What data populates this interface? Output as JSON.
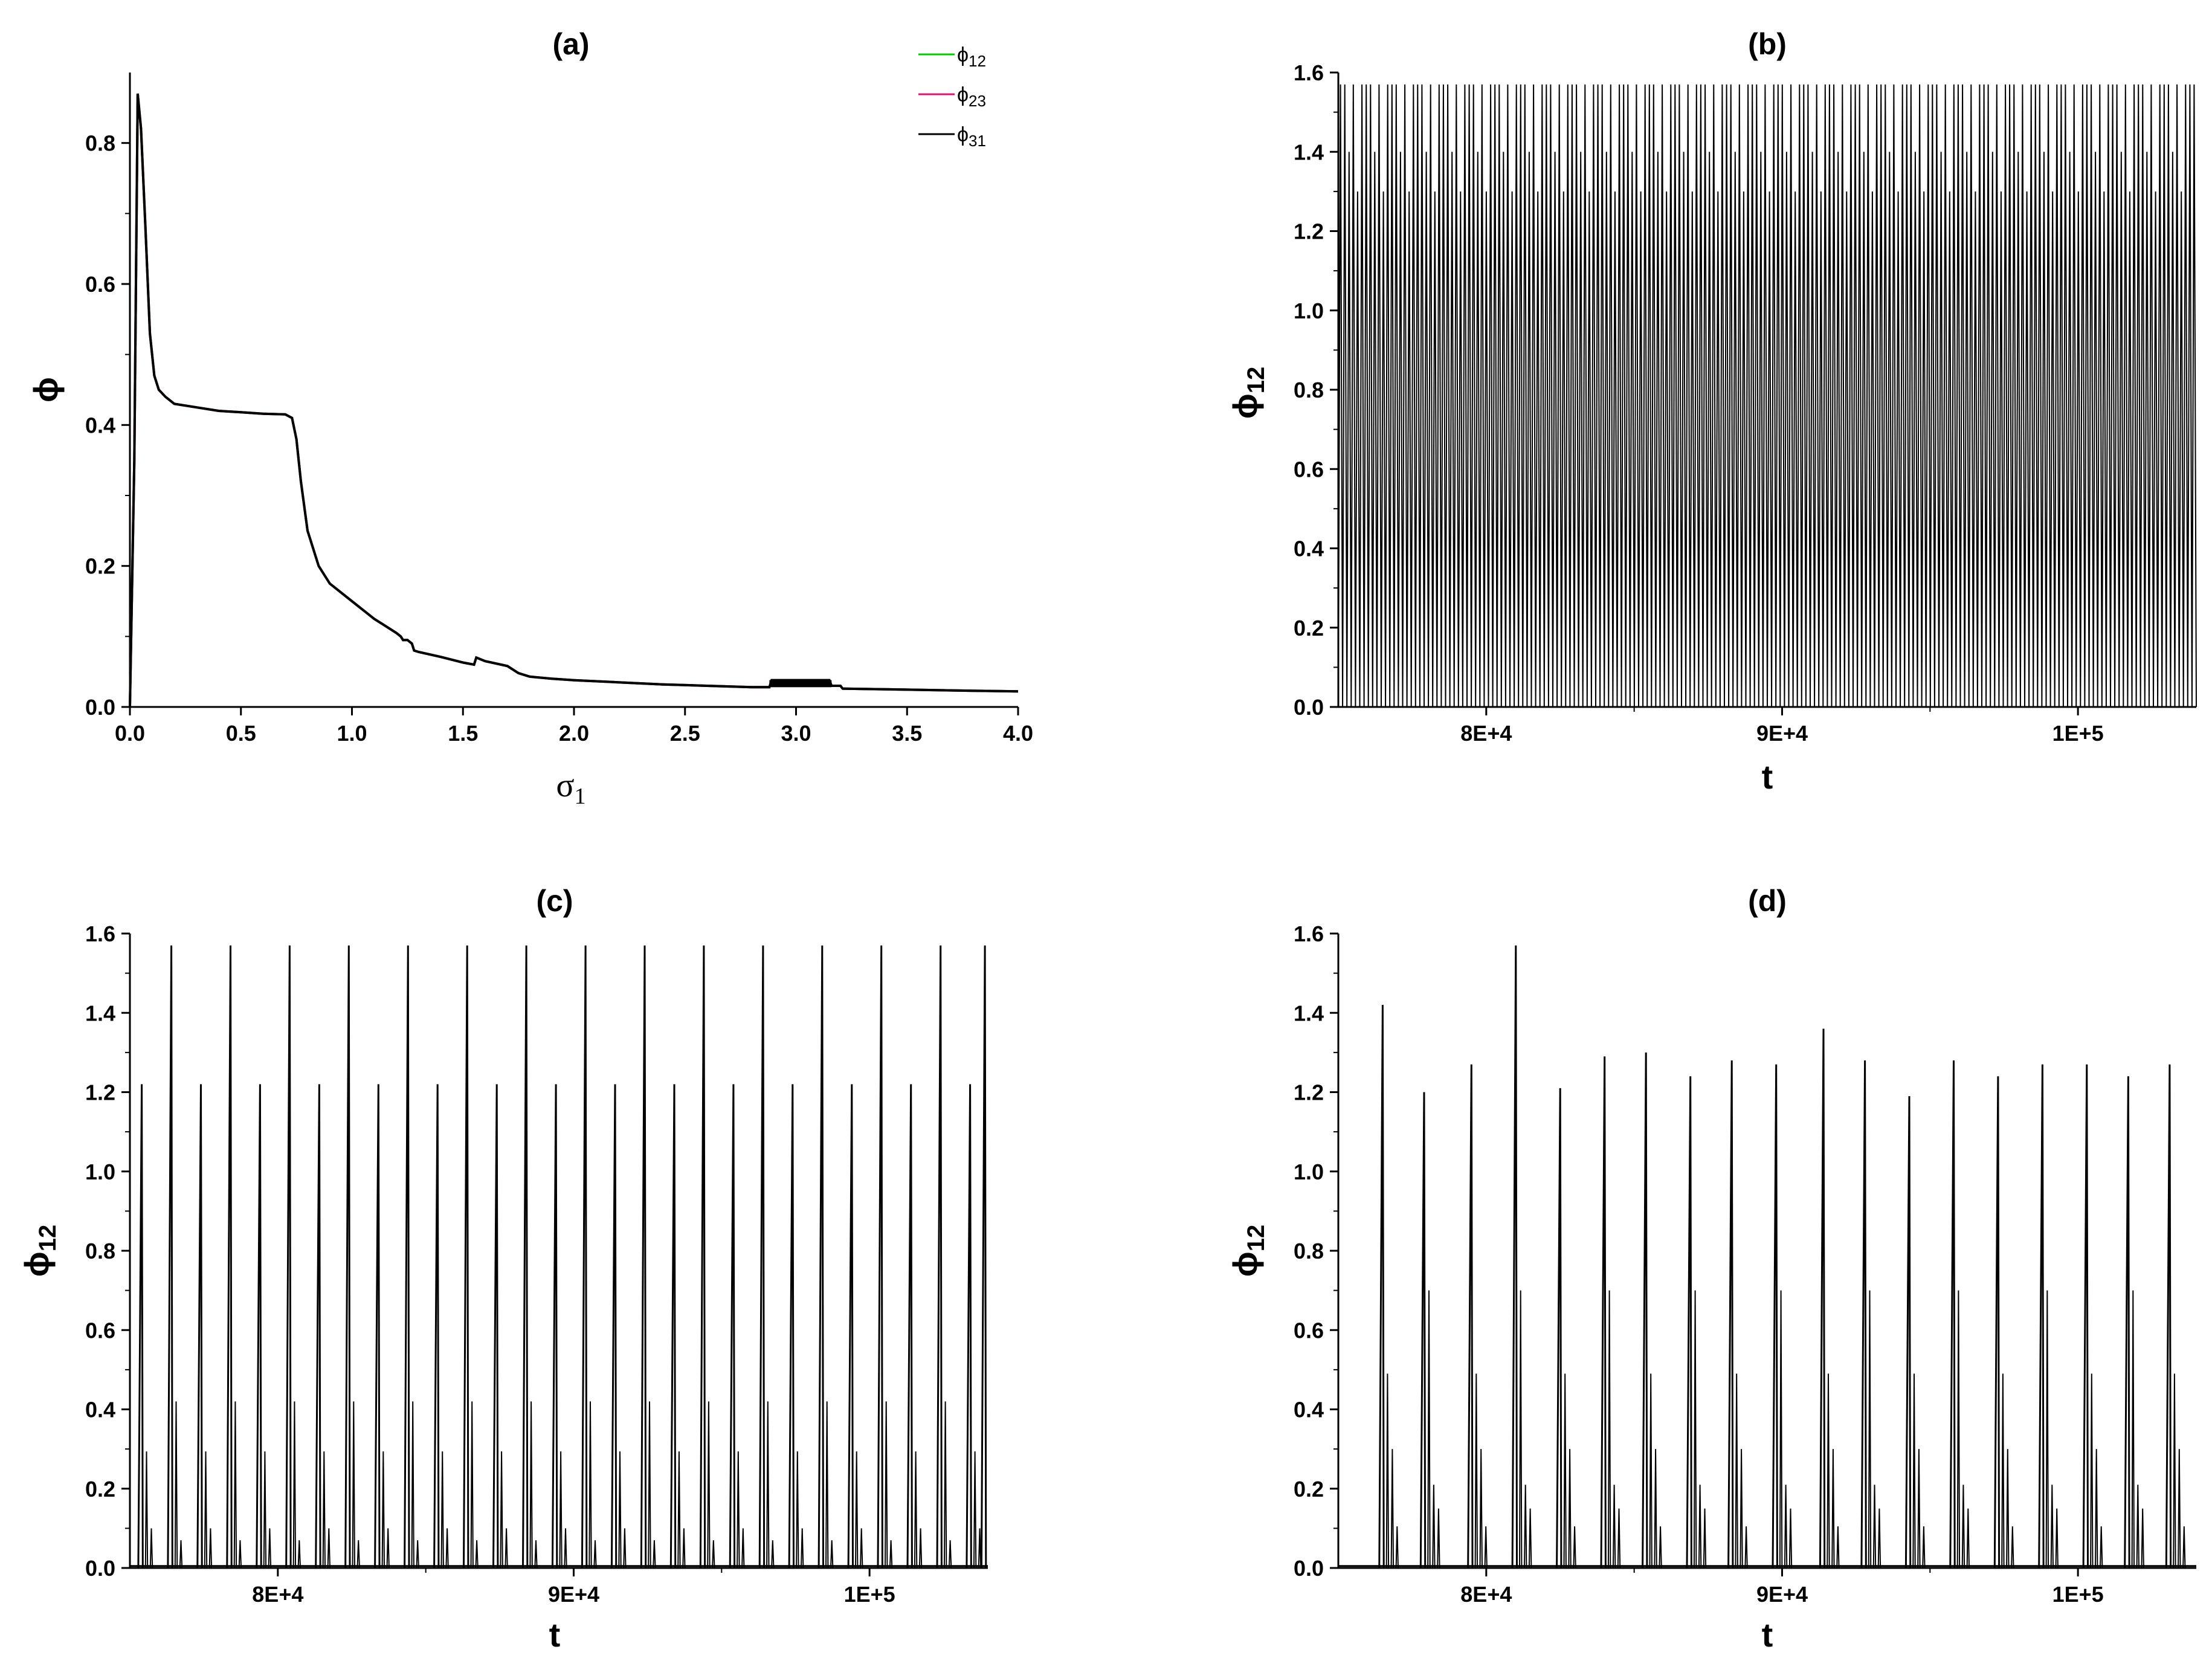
{
  "chart_data": [
    {
      "id": "a",
      "type": "line",
      "title": "(a)",
      "xlabel": "σ",
      "xlabel_sub": "1",
      "ylabel": "ϕ",
      "xlim": [
        0,
        4.0
      ],
      "ylim": [
        0,
        0.9
      ],
      "xticks": [
        0.0,
        0.5,
        1.0,
        1.5,
        2.0,
        2.5,
        3.0,
        3.5,
        4.0
      ],
      "xtick_labels": [
        "0.0",
        "0.5",
        "1.0",
        "1.5",
        "2.0",
        "2.5",
        "3.0",
        "3.5",
        "4.0"
      ],
      "yticks": [
        0.0,
        0.2,
        0.4,
        0.6,
        0.8
      ],
      "ytick_labels": [
        "0.0",
        "0.2",
        "0.4",
        "0.6",
        "0.8"
      ],
      "legend_position": "top-right",
      "legend": [
        {
          "main": "ϕ",
          "sub": "12",
          "color": "#00cc00"
        },
        {
          "main": "ϕ",
          "sub": "23",
          "color": "#e0107a"
        },
        {
          "main": "ϕ",
          "sub": "31",
          "color": "#000000"
        }
      ],
      "series": [
        {
          "name": "ϕ12",
          "color": "#00cc00",
          "x": [
            0,
            0.02,
            0.035,
            0.05,
            0.07,
            0.09,
            0.11,
            0.13,
            0.16,
            0.2,
            0.3,
            0.4,
            0.5,
            0.6,
            0.7,
            0.73,
            0.75,
            0.77,
            0.8,
            0.85,
            0.9,
            1.0,
            1.1,
            1.2,
            1.22,
            1.23,
            1.25,
            1.27,
            1.28,
            1.3,
            1.4,
            1.5,
            1.55,
            1.56,
            1.6,
            1.7,
            1.75,
            1.8,
            1.9,
            2.0,
            2.2,
            2.4,
            2.6,
            2.8,
            2.88,
            2.89,
            3.0,
            3.1,
            3.15,
            3.16,
            3.2,
            3.21,
            3.4,
            3.6,
            3.8,
            4.0
          ],
          "y": [
            0,
            0.35,
            0.87,
            0.82,
            0.68,
            0.53,
            0.47,
            0.45,
            0.44,
            0.43,
            0.425,
            0.42,
            0.418,
            0.416,
            0.415,
            0.41,
            0.38,
            0.32,
            0.25,
            0.2,
            0.175,
            0.15,
            0.125,
            0.105,
            0.1,
            0.095,
            0.095,
            0.09,
            0.08,
            0.078,
            0.071,
            0.063,
            0.06,
            0.07,
            0.065,
            0.058,
            0.048,
            0.043,
            0.04,
            0.038,
            0.035,
            0.032,
            0.03,
            0.028,
            0.028,
            0.038,
            0.038,
            0.038,
            0.038,
            0.03,
            0.03,
            0.026,
            0.025,
            0.024,
            0.023,
            0.022
          ]
        },
        {
          "name": "ϕ23",
          "color": "#e0107a",
          "x": [
            0,
            0.02,
            0.035,
            0.05,
            0.07,
            0.09,
            0.11,
            0.13,
            0.16,
            0.2,
            0.3,
            0.4,
            0.5,
            0.6,
            0.7,
            0.73,
            0.75,
            0.77,
            0.8,
            0.85,
            0.9,
            1.0,
            1.1,
            1.2,
            1.22,
            1.23,
            1.25,
            1.27,
            1.28,
            1.3,
            1.4,
            1.5,
            1.55,
            1.56,
            1.6,
            1.7,
            1.75,
            1.8,
            1.9,
            2.0,
            2.2,
            2.4,
            2.6,
            2.8,
            2.88,
            2.89,
            3.0,
            3.1,
            3.15,
            3.16,
            3.2,
            3.21,
            3.4,
            3.6,
            3.8,
            4.0
          ],
          "y": [
            0,
            0.35,
            0.87,
            0.82,
            0.68,
            0.53,
            0.47,
            0.45,
            0.44,
            0.43,
            0.425,
            0.42,
            0.418,
            0.416,
            0.415,
            0.41,
            0.38,
            0.32,
            0.25,
            0.2,
            0.175,
            0.15,
            0.125,
            0.105,
            0.1,
            0.095,
            0.095,
            0.09,
            0.08,
            0.078,
            0.071,
            0.063,
            0.06,
            0.07,
            0.065,
            0.058,
            0.048,
            0.043,
            0.04,
            0.038,
            0.035,
            0.032,
            0.03,
            0.028,
            0.028,
            0.038,
            0.038,
            0.038,
            0.038,
            0.03,
            0.03,
            0.026,
            0.025,
            0.024,
            0.023,
            0.022
          ]
        },
        {
          "name": "ϕ31",
          "color": "#000000",
          "x": [
            0,
            0.02,
            0.035,
            0.05,
            0.07,
            0.09,
            0.11,
            0.13,
            0.16,
            0.2,
            0.3,
            0.4,
            0.5,
            0.6,
            0.7,
            0.73,
            0.75,
            0.77,
            0.8,
            0.85,
            0.9,
            1.0,
            1.1,
            1.2,
            1.22,
            1.23,
            1.25,
            1.27,
            1.28,
            1.3,
            1.4,
            1.5,
            1.55,
            1.56,
            1.6,
            1.7,
            1.75,
            1.8,
            1.9,
            2.0,
            2.2,
            2.4,
            2.6,
            2.8,
            2.88,
            2.89,
            3.0,
            3.1,
            3.15,
            3.16,
            3.2,
            3.21,
            3.4,
            3.6,
            3.8,
            4.0
          ],
          "y": [
            0,
            0.35,
            0.87,
            0.82,
            0.68,
            0.53,
            0.47,
            0.45,
            0.44,
            0.43,
            0.425,
            0.42,
            0.418,
            0.416,
            0.415,
            0.41,
            0.38,
            0.32,
            0.25,
            0.2,
            0.175,
            0.15,
            0.125,
            0.105,
            0.1,
            0.095,
            0.095,
            0.09,
            0.08,
            0.078,
            0.071,
            0.063,
            0.06,
            0.07,
            0.065,
            0.058,
            0.048,
            0.043,
            0.04,
            0.038,
            0.035,
            0.032,
            0.03,
            0.028,
            0.028,
            0.038,
            0.038,
            0.038,
            0.038,
            0.03,
            0.03,
            0.026,
            0.025,
            0.024,
            0.023,
            0.022
          ]
        }
      ]
    },
    {
      "id": "b",
      "type": "line",
      "title": "(b)",
      "xlabel": "t",
      "ylabel": "ϕ",
      "ylabel_sub": "12",
      "xlim": [
        75000,
        104000
      ],
      "ylim": [
        0,
        1.6
      ],
      "xticks": [
        80000,
        90000,
        100000
      ],
      "xtick_labels": [
        "8E+4",
        "9E+4",
        "1E+5"
      ],
      "yticks": [
        0.0,
        0.2,
        0.4,
        0.6,
        0.8,
        1.0,
        1.2,
        1.4,
        1.6
      ],
      "ytick_labels": [
        "0.0",
        "0.2",
        "0.4",
        "0.6",
        "0.8",
        "1.0",
        "1.2",
        "1.4",
        "1.6"
      ],
      "series": [
        {
          "color": "#000000",
          "pattern": "dense-oscillation",
          "start": 75000,
          "period": 145,
          "peaks": [
            1.57,
            1.57,
            1.4,
            1.57,
            1.3,
            1.57
          ]
        }
      ]
    },
    {
      "id": "c",
      "type": "line",
      "title": "(c)",
      "xlabel": "t",
      "ylabel": "ϕ",
      "ylabel_sub": "12",
      "xlim": [
        75000,
        104000
      ],
      "ylim": [
        0,
        1.6
      ],
      "xticks": [
        80000,
        90000,
        100000
      ],
      "xtick_labels": [
        "8E+4",
        "9E+4",
        "1E+5"
      ],
      "yticks": [
        0.0,
        0.2,
        0.4,
        0.6,
        0.8,
        1.0,
        1.2,
        1.4,
        1.6
      ],
      "ytick_labels": [
        "0.0",
        "0.2",
        "0.4",
        "0.6",
        "0.8",
        "1.0",
        "1.2",
        "1.4",
        "1.6"
      ],
      "series": [
        {
          "color": "#000000",
          "pattern": "spike-train",
          "spikes": [
            [
              75400,
              1.22
            ],
            [
              76400,
              1.57
            ],
            [
              77400,
              1.22
            ],
            [
              78400,
              1.57
            ],
            [
              79400,
              1.22
            ],
            [
              80400,
              1.57
            ],
            [
              81400,
              1.22
            ],
            [
              82400,
              1.57
            ],
            [
              83400,
              1.22
            ],
            [
              84400,
              1.57
            ],
            [
              85400,
              1.22
            ],
            [
              86400,
              1.57
            ],
            [
              87400,
              1.22
            ],
            [
              88400,
              1.57
            ],
            [
              89400,
              1.22
            ],
            [
              90400,
              1.57
            ],
            [
              91400,
              1.22
            ],
            [
              92400,
              1.57
            ],
            [
              93400,
              1.22
            ],
            [
              94400,
              1.57
            ],
            [
              95400,
              1.22
            ],
            [
              96400,
              1.57
            ],
            [
              97400,
              1.22
            ],
            [
              98400,
              1.57
            ],
            [
              99400,
              1.22
            ],
            [
              100400,
              1.57
            ],
            [
              101400,
              1.22
            ],
            [
              102400,
              1.57
            ],
            [
              103400,
              1.22
            ],
            [
              103900,
              1.57
            ]
          ],
          "secondary": [
            0.42,
            0.1
          ]
        }
      ]
    },
    {
      "id": "d",
      "type": "line",
      "title": "(d)",
      "xlabel": "t",
      "ylabel": "ϕ",
      "ylabel_sub": "12",
      "xlim": [
        75000,
        104000
      ],
      "ylim": [
        0,
        1.6
      ],
      "xticks": [
        80000,
        90000,
        100000
      ],
      "xtick_labels": [
        "8E+4",
        "9E+4",
        "1E+5"
      ],
      "yticks": [
        0.0,
        0.2,
        0.4,
        0.6,
        0.8,
        1.0,
        1.2,
        1.4,
        1.6
      ],
      "ytick_labels": [
        "0.0",
        "0.2",
        "0.4",
        "0.6",
        "0.8",
        "1.0",
        "1.2",
        "1.4",
        "1.6"
      ],
      "series": [
        {
          "color": "#000000",
          "pattern": "spike-train",
          "spikes": [
            [
              76500,
              1.42
            ],
            [
              77900,
              1.2
            ],
            [
              79500,
              1.27
            ],
            [
              81000,
              1.57
            ],
            [
              82500,
              1.21
            ],
            [
              84000,
              1.29
            ],
            [
              85400,
              1.3
            ],
            [
              86900,
              1.24
            ],
            [
              88300,
              1.28
            ],
            [
              89800,
              1.27
            ],
            [
              91400,
              1.36
            ],
            [
              92800,
              1.28
            ],
            [
              94300,
              1.19
            ],
            [
              95800,
              1.28
            ],
            [
              97300,
              1.24
            ],
            [
              98800,
              1.27
            ],
            [
              100300,
              1.27
            ],
            [
              101700,
              1.24
            ],
            [
              103100,
              1.27
            ]
          ],
          "secondary": [
            0.7,
            0.3,
            0.15
          ]
        }
      ]
    }
  ]
}
